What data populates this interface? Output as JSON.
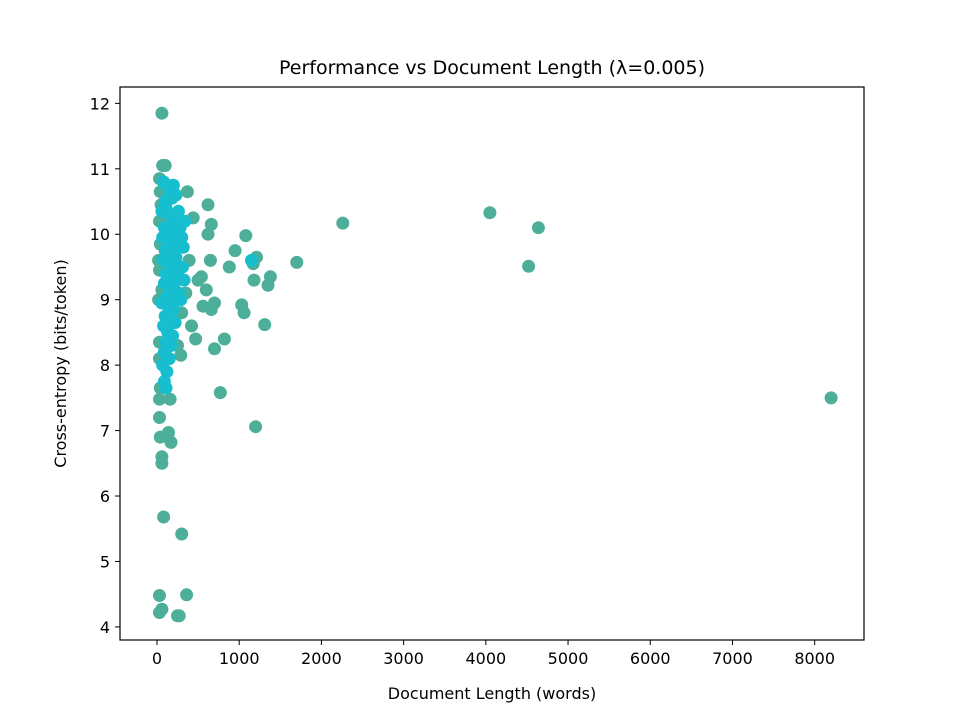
{
  "chart_data": {
    "type": "scatter",
    "title": "Performance vs Document Length (λ=0.005)",
    "xlabel": "Document Length (words)",
    "ylabel": "Cross-entropy (bits/token)",
    "xlim": [
      -450,
      8600
    ],
    "ylim": [
      3.8,
      12.25
    ],
    "xticks": [
      0,
      1000,
      2000,
      3000,
      4000,
      5000,
      6000,
      7000,
      8000
    ],
    "yticks": [
      4,
      5,
      6,
      7,
      8,
      9,
      10,
      11,
      12
    ],
    "grid": false,
    "colors": {
      "outer": "#4daf9a",
      "inner": "#17becf"
    },
    "series": [
      {
        "color": "#4daf9a",
        "points": [
          [
            60,
            11.85
          ],
          [
            70,
            11.05
          ],
          [
            100,
            11.05
          ],
          [
            30,
            10.85
          ],
          [
            40,
            10.65
          ],
          [
            50,
            10.45
          ],
          [
            80,
            10.25
          ],
          [
            30,
            10.2
          ],
          [
            370,
            10.65
          ],
          [
            440,
            10.25
          ],
          [
            620,
            10.45
          ],
          [
            660,
            10.15
          ],
          [
            620,
            10.0
          ],
          [
            40,
            9.85
          ],
          [
            20,
            9.6
          ],
          [
            30,
            9.45
          ],
          [
            60,
            9.15
          ],
          [
            20,
            9.0
          ],
          [
            500,
            9.3
          ],
          [
            540,
            9.35
          ],
          [
            600,
            9.15
          ],
          [
            650,
            9.6
          ],
          [
            560,
            8.9
          ],
          [
            660,
            8.85
          ],
          [
            700,
            8.95
          ],
          [
            470,
            8.4
          ],
          [
            420,
            8.6
          ],
          [
            700,
            8.25
          ],
          [
            820,
            8.4
          ],
          [
            880,
            9.5
          ],
          [
            950,
            9.75
          ],
          [
            1080,
            9.98
          ],
          [
            1170,
            9.55
          ],
          [
            1210,
            9.65
          ],
          [
            1180,
            9.3
          ],
          [
            1030,
            8.92
          ],
          [
            1060,
            8.8
          ],
          [
            1310,
            8.62
          ],
          [
            1350,
            9.22
          ],
          [
            1380,
            9.35
          ],
          [
            1700,
            9.57
          ],
          [
            2260,
            10.17
          ],
          [
            4050,
            10.33
          ],
          [
            4640,
            10.1
          ],
          [
            4520,
            9.51
          ],
          [
            8200,
            7.5
          ],
          [
            30,
            8.35
          ],
          [
            30,
            8.1
          ],
          [
            40,
            7.65
          ],
          [
            30,
            7.48
          ],
          [
            30,
            7.2
          ],
          [
            40,
            6.9
          ],
          [
            60,
            6.6
          ],
          [
            60,
            6.5
          ],
          [
            80,
            5.68
          ],
          [
            30,
            4.48
          ],
          [
            30,
            4.22
          ],
          [
            60,
            4.27
          ],
          [
            250,
            4.17
          ],
          [
            270,
            4.17
          ],
          [
            300,
            5.42
          ],
          [
            360,
            4.49
          ],
          [
            160,
            7.48
          ],
          [
            140,
            6.97
          ],
          [
            170,
            6.82
          ],
          [
            290,
            8.15
          ],
          [
            250,
            8.3
          ],
          [
            300,
            8.8
          ],
          [
            350,
            9.1
          ],
          [
            390,
            9.6
          ],
          [
            770,
            7.58
          ],
          [
            1200,
            7.06
          ]
        ]
      },
      {
        "color": "#17becf",
        "points": [
          [
            80,
            10.8
          ],
          [
            120,
            10.75
          ],
          [
            150,
            10.6
          ],
          [
            100,
            10.5
          ],
          [
            180,
            10.55
          ],
          [
            60,
            10.35
          ],
          [
            110,
            10.4
          ],
          [
            140,
            10.3
          ],
          [
            200,
            10.2
          ],
          [
            90,
            10.1
          ],
          [
            160,
            10.05
          ],
          [
            220,
            10.0
          ],
          [
            70,
            9.95
          ],
          [
            130,
            9.9
          ],
          [
            190,
            9.85
          ],
          [
            250,
            9.8
          ],
          [
            100,
            9.75
          ],
          [
            170,
            9.7
          ],
          [
            230,
            9.65
          ],
          [
            80,
            9.6
          ],
          [
            140,
            9.55
          ],
          [
            200,
            9.5
          ],
          [
            260,
            9.45
          ],
          [
            110,
            9.4
          ],
          [
            180,
            9.35
          ],
          [
            240,
            9.3
          ],
          [
            90,
            9.25
          ],
          [
            150,
            9.2
          ],
          [
            210,
            9.15
          ],
          [
            270,
            9.1
          ],
          [
            120,
            9.05
          ],
          [
            180,
            9.0
          ],
          [
            60,
            8.95
          ],
          [
            140,
            8.9
          ],
          [
            200,
            8.85
          ],
          [
            100,
            8.75
          ],
          [
            160,
            8.7
          ],
          [
            220,
            8.65
          ],
          [
            80,
            8.6
          ],
          [
            130,
            8.5
          ],
          [
            190,
            8.45
          ],
          [
            110,
            8.35
          ],
          [
            170,
            8.3
          ],
          [
            90,
            8.2
          ],
          [
            150,
            8.1
          ],
          [
            70,
            8.0
          ],
          [
            120,
            7.9
          ],
          [
            90,
            7.75
          ],
          [
            110,
            7.65
          ],
          [
            280,
            10.1
          ],
          [
            300,
            9.95
          ],
          [
            320,
            9.8
          ],
          [
            310,
            9.5
          ],
          [
            330,
            9.3
          ],
          [
            290,
            9.0
          ],
          [
            340,
            10.2
          ],
          [
            260,
            10.35
          ],
          [
            230,
            10.6
          ],
          [
            200,
            10.75
          ],
          [
            170,
            9.98
          ],
          [
            1150,
            9.6
          ]
        ]
      }
    ]
  }
}
